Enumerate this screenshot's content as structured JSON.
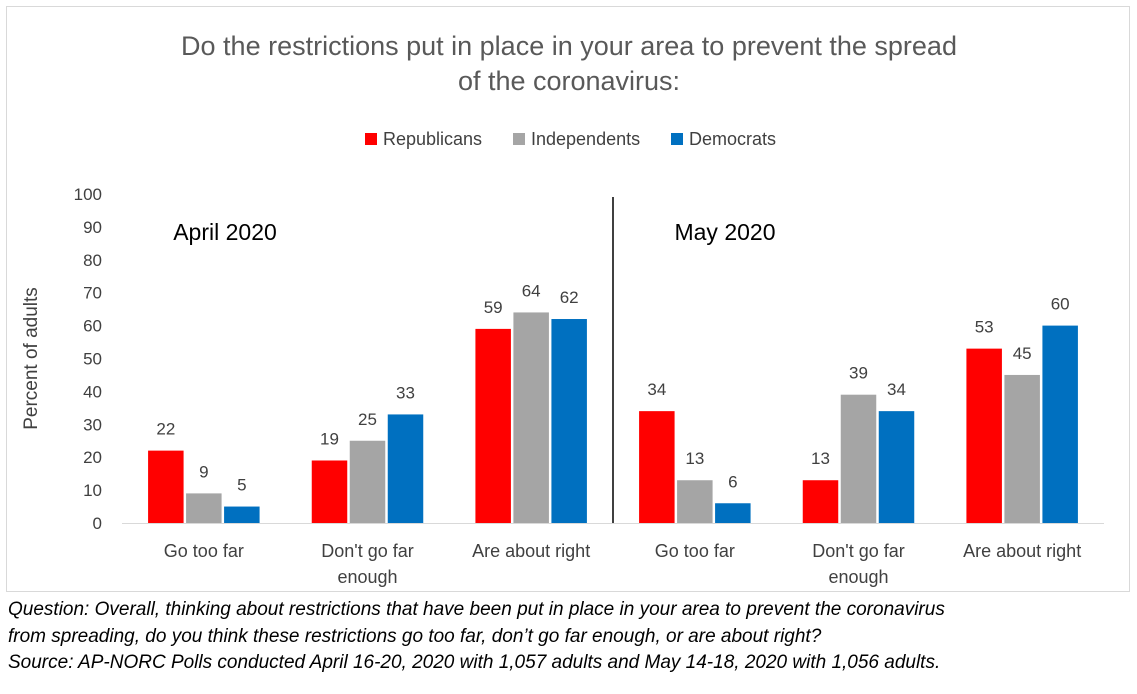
{
  "chart_data": {
    "type": "bar",
    "title_lines": [
      "Do the restrictions put in place in your area to prevent the spread",
      "of the coronavirus:"
    ],
    "ylabel": "Percent of adults",
    "ylim": [
      0,
      100
    ],
    "yticks": [
      0,
      10,
      20,
      30,
      40,
      50,
      60,
      70,
      80,
      90,
      100
    ],
    "legend_position": "top-center",
    "grid": false,
    "series_meta": [
      {
        "name": "Republicans",
        "color": "#ff0000"
      },
      {
        "name": "Independents",
        "color": "#a5a5a5"
      },
      {
        "name": "Democrats",
        "color": "#0070c0"
      }
    ],
    "groups": [
      {
        "label": "April 2020",
        "categories": [
          [
            "Go too far"
          ],
          [
            "Don't go far",
            "enough"
          ],
          [
            "Are about right"
          ]
        ],
        "series": [
          {
            "name": "Republicans",
            "values": [
              22,
              19,
              59
            ]
          },
          {
            "name": "Independents",
            "values": [
              9,
              25,
              64
            ]
          },
          {
            "name": "Democrats",
            "values": [
              5,
              33,
              62
            ]
          }
        ]
      },
      {
        "label": "May 2020",
        "categories": [
          [
            "Go too far"
          ],
          [
            "Don't go far",
            "enough"
          ],
          [
            "Are about right"
          ]
        ],
        "series": [
          {
            "name": "Republicans",
            "values": [
              34,
              13,
              53
            ]
          },
          {
            "name": "Independents",
            "values": [
              13,
              39,
              45
            ]
          },
          {
            "name": "Democrats",
            "values": [
              6,
              34,
              60
            ]
          }
        ]
      }
    ]
  },
  "notes": {
    "question_line1": "Question: Overall, thinking about restrictions that have been put in place in your area to prevent the coronavirus",
    "question_line2": "from spreading, do you think these restrictions go too far, don’t go far enough, or are about right?",
    "source": "Source: AP-NORC Polls conducted April 16-20, 2020 with 1,057 adults and May 14-18, 2020 with 1,056 adults."
  }
}
